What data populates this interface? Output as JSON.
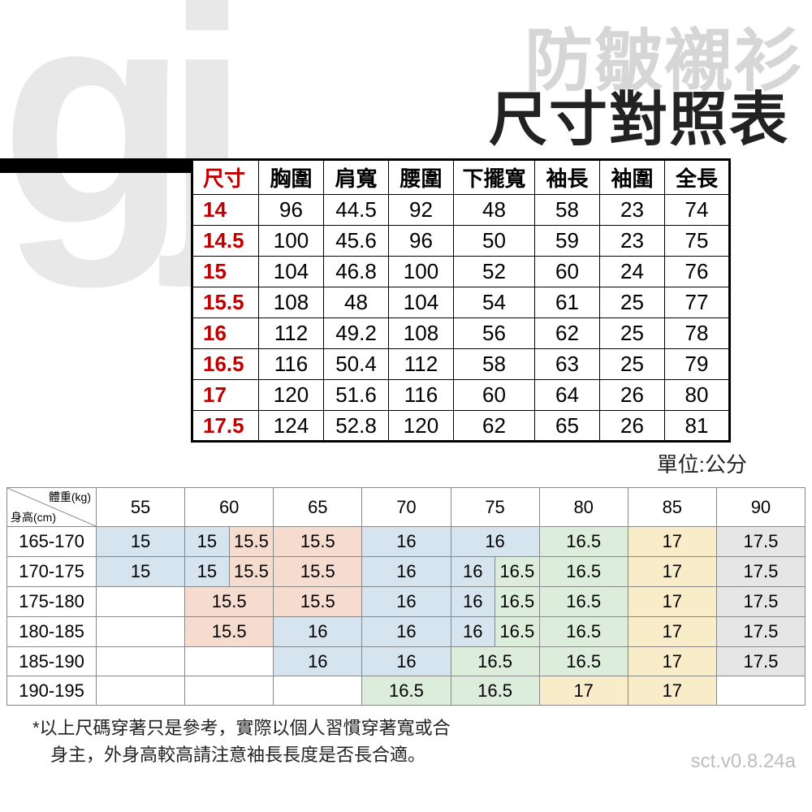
{
  "background": {
    "logo_text": "gj",
    "watermark": "防皺襯衫",
    "logo_color": "#e8e8e8",
    "watermark_color": "#d6d6d6"
  },
  "title": "尺寸對照表",
  "unit_label": "單位:公分",
  "size_table": {
    "type": "table",
    "header_color": "#c00000",
    "border_color": "#000000",
    "columns": [
      "尺寸",
      "胸圍",
      "肩寬",
      "腰圍",
      "下擺寬",
      "袖長",
      "袖圍",
      "全長"
    ],
    "rows": [
      [
        "14",
        "96",
        "44.5",
        "92",
        "48",
        "58",
        "23",
        "74"
      ],
      [
        "14.5",
        "100",
        "45.6",
        "96",
        "50",
        "59",
        "23",
        "75"
      ],
      [
        "15",
        "104",
        "46.8",
        "100",
        "52",
        "60",
        "24",
        "76"
      ],
      [
        "15.5",
        "108",
        "48",
        "104",
        "54",
        "61",
        "25",
        "77"
      ],
      [
        "16",
        "112",
        "49.2",
        "108",
        "56",
        "62",
        "25",
        "78"
      ],
      [
        "16.5",
        "116",
        "50.4",
        "112",
        "58",
        "63",
        "25",
        "79"
      ],
      [
        "17",
        "120",
        "51.6",
        "116",
        "60",
        "64",
        "26",
        "80"
      ],
      [
        "17.5",
        "124",
        "52.8",
        "120",
        "62",
        "65",
        "26",
        "81"
      ]
    ]
  },
  "rec_table": {
    "type": "table",
    "diag_top": "體重(kg)",
    "diag_bottom": "身高(cm)",
    "weight_headers": [
      "55",
      "60",
      "65",
      "70",
      "75",
      "80",
      "85",
      "90"
    ],
    "height_rows": [
      "165-170",
      "170-175",
      "175-180",
      "180-185",
      "185-190",
      "190-195"
    ],
    "colors": {
      "blue": "#d6e4f0",
      "peach": "#f6dccf",
      "green": "#dceddc",
      "yellow": "#f9ecc9",
      "grey": "#e6e6e6",
      "none": "#ffffff"
    },
    "cells": [
      [
        {
          "v": "15",
          "c": "blue"
        },
        {
          "split": [
            {
              "v": "15",
              "c": "blue"
            },
            {
              "v": "15.5",
              "c": "peach"
            }
          ]
        },
        {
          "v": "15.5",
          "c": "peach"
        },
        {
          "v": "16",
          "c": "blue"
        },
        {
          "v": "16",
          "c": "blue"
        },
        {
          "v": "16.5",
          "c": "green"
        },
        {
          "v": "17",
          "c": "yellow"
        },
        {
          "v": "17.5",
          "c": "grey"
        }
      ],
      [
        {
          "v": "15",
          "c": "blue"
        },
        {
          "split": [
            {
              "v": "15",
              "c": "blue"
            },
            {
              "v": "15.5",
              "c": "peach"
            }
          ]
        },
        {
          "v": "15.5",
          "c": "peach"
        },
        {
          "v": "16",
          "c": "blue"
        },
        {
          "split": [
            {
              "v": "16",
              "c": "blue"
            },
            {
              "v": "16.5",
              "c": "green"
            }
          ]
        },
        {
          "v": "16.5",
          "c": "green"
        },
        {
          "v": "17",
          "c": "yellow"
        },
        {
          "v": "17.5",
          "c": "grey"
        }
      ],
      [
        {
          "v": "",
          "c": "none"
        },
        {
          "v": "15.5",
          "c": "peach"
        },
        {
          "v": "15.5",
          "c": "peach"
        },
        {
          "v": "16",
          "c": "blue"
        },
        {
          "split": [
            {
              "v": "16",
              "c": "blue"
            },
            {
              "v": "16.5",
              "c": "green"
            }
          ]
        },
        {
          "v": "16.5",
          "c": "green"
        },
        {
          "v": "17",
          "c": "yellow"
        },
        {
          "v": "17.5",
          "c": "grey"
        }
      ],
      [
        {
          "v": "",
          "c": "none"
        },
        {
          "v": "15.5",
          "c": "peach"
        },
        {
          "v": "16",
          "c": "blue"
        },
        {
          "v": "16",
          "c": "blue"
        },
        {
          "split": [
            {
              "v": "16",
              "c": "blue"
            },
            {
              "v": "16.5",
              "c": "green"
            }
          ]
        },
        {
          "v": "16.5",
          "c": "green"
        },
        {
          "v": "17",
          "c": "yellow"
        },
        {
          "v": "17.5",
          "c": "grey"
        }
      ],
      [
        {
          "v": "",
          "c": "none"
        },
        {
          "v": "",
          "c": "none"
        },
        {
          "v": "16",
          "c": "blue"
        },
        {
          "v": "16",
          "c": "blue"
        },
        {
          "v": "16.5",
          "c": "green"
        },
        {
          "v": "16.5",
          "c": "green"
        },
        {
          "v": "17",
          "c": "yellow"
        },
        {
          "v": "17.5",
          "c": "grey"
        }
      ],
      [
        {
          "v": "",
          "c": "none"
        },
        {
          "v": "",
          "c": "none"
        },
        {
          "v": "",
          "c": "none"
        },
        {
          "v": "16.5",
          "c": "green"
        },
        {
          "v": "16.5",
          "c": "green"
        },
        {
          "v": "17",
          "c": "yellow"
        },
        {
          "v": "17",
          "c": "yellow"
        },
        {
          "v": "",
          "c": "none"
        }
      ]
    ]
  },
  "footnote": "*以上尺碼穿著只是參考，實際以個人習慣穿著寬或合\n　身主，外身高較高請注意袖長長度是否長合適。",
  "version": "sct.v0.8.24a"
}
